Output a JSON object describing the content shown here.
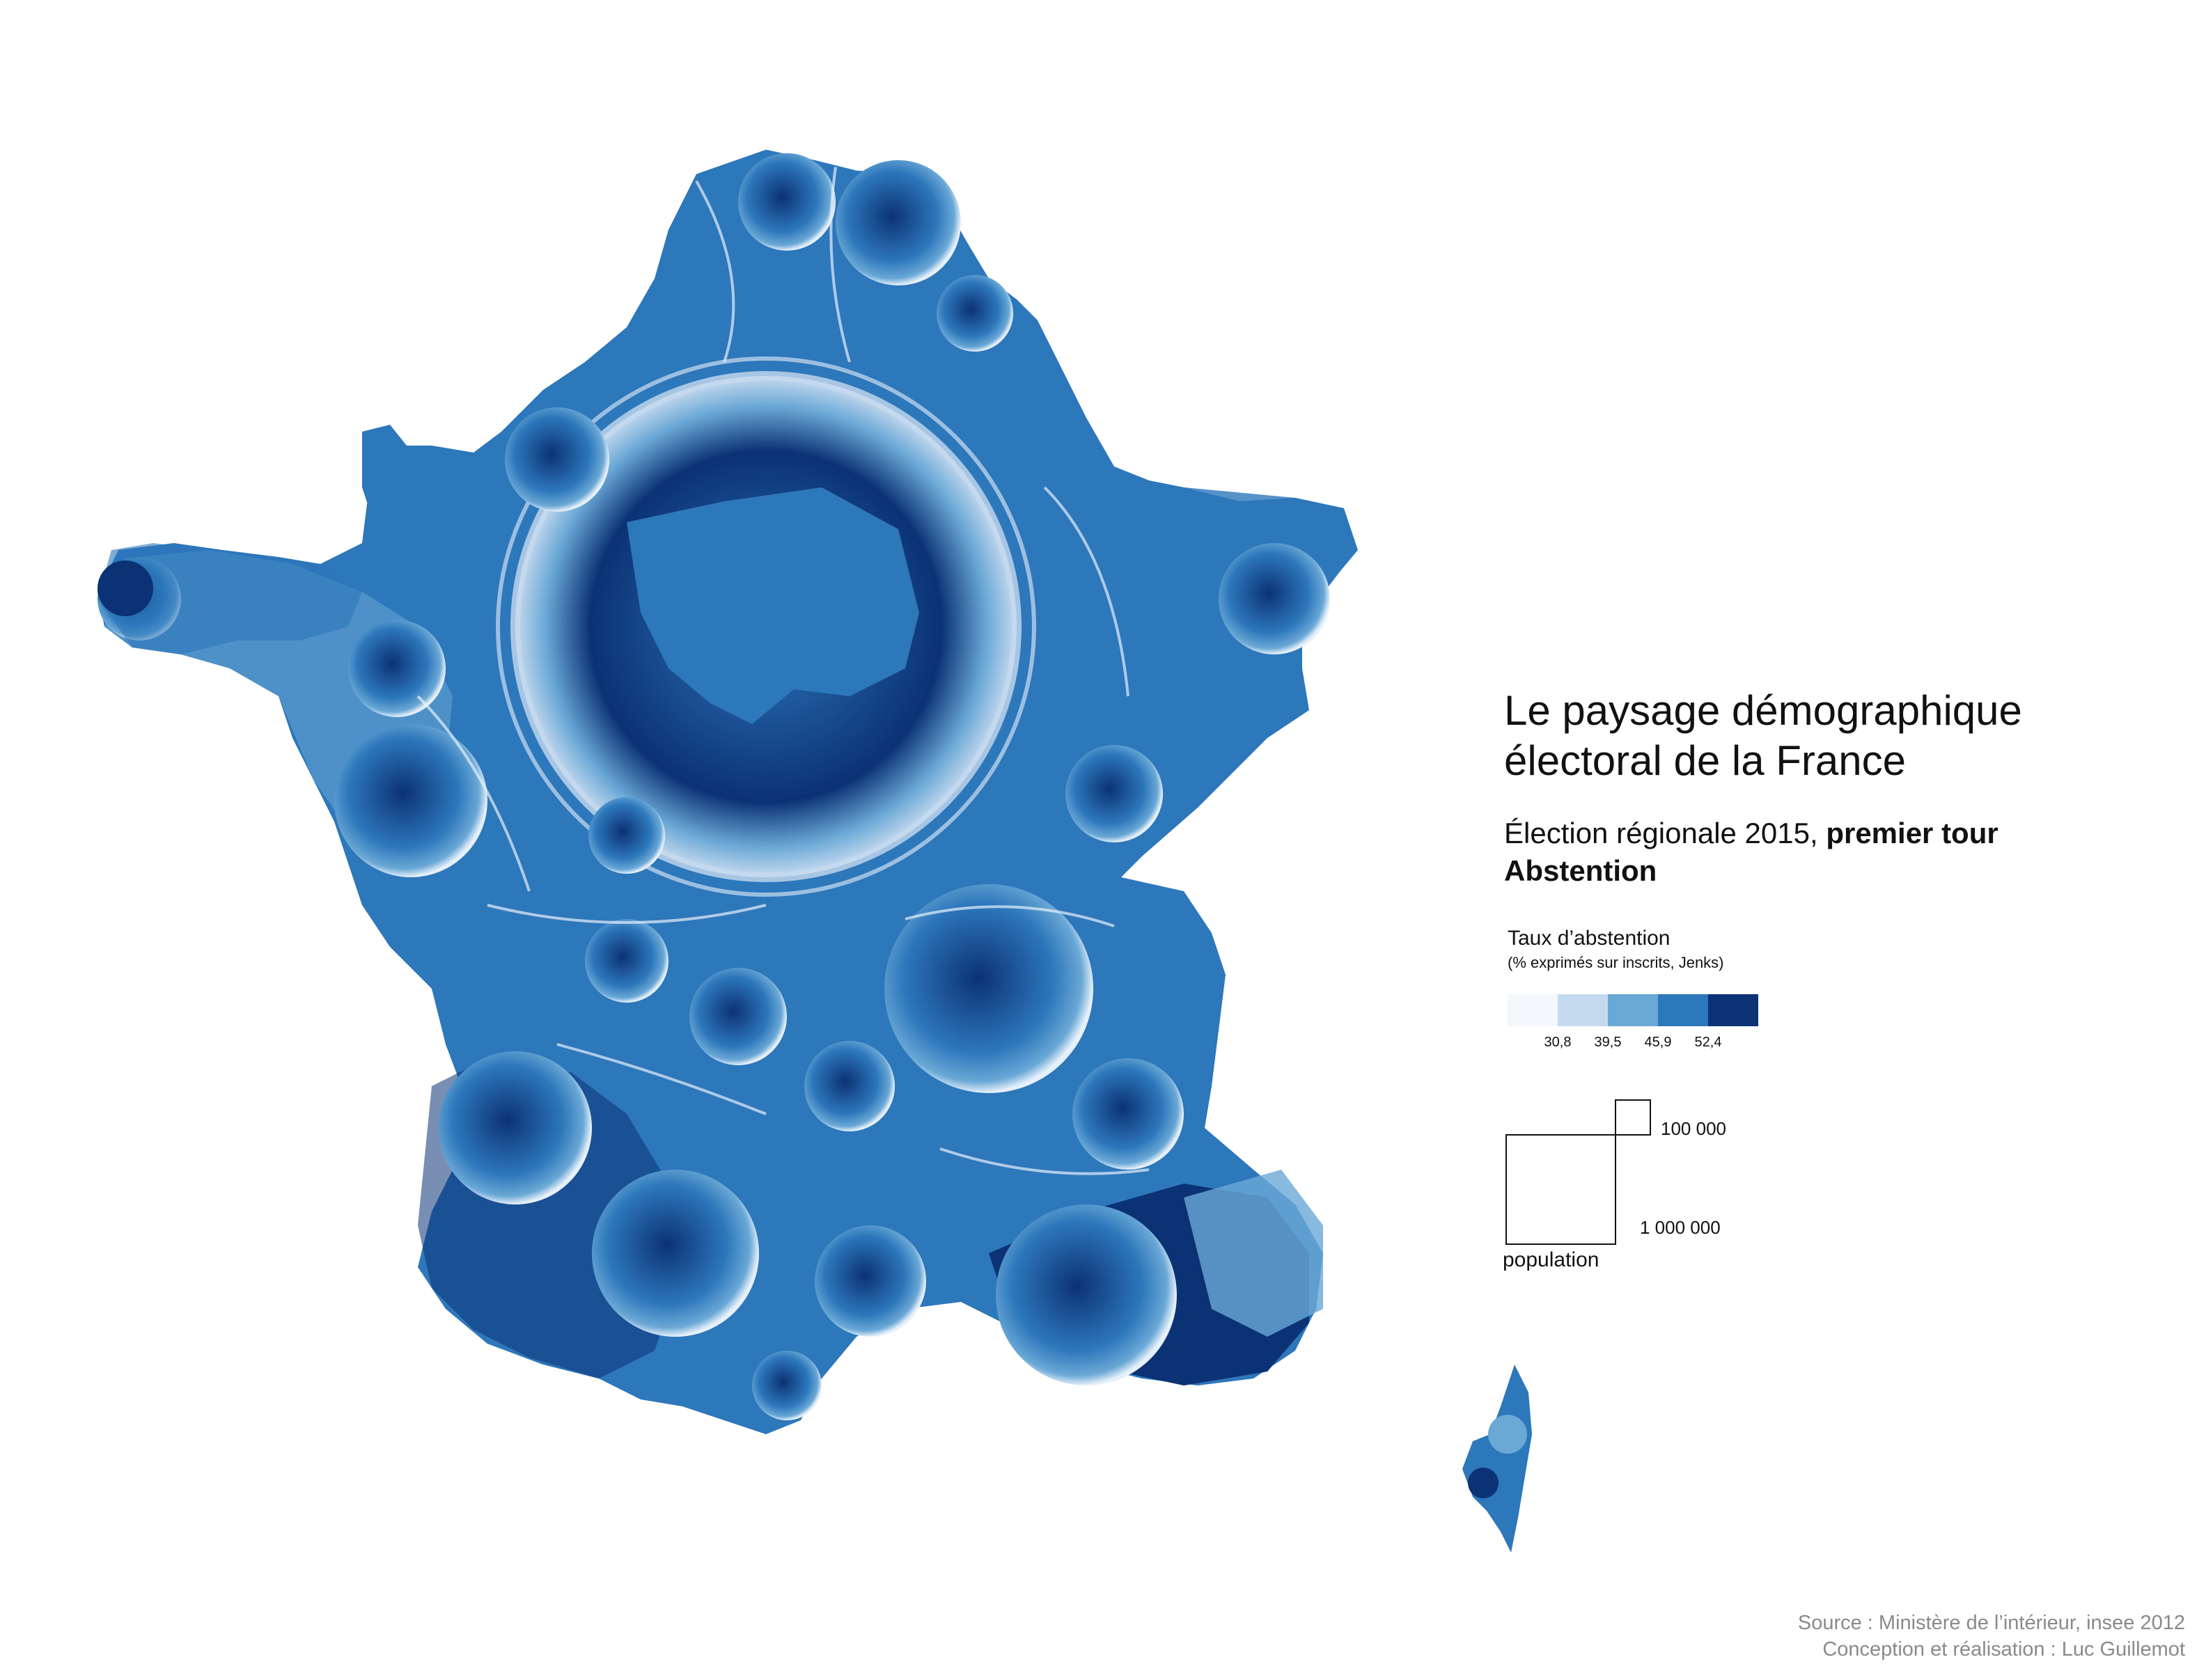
{
  "map": {
    "title_line1": "Le paysage démographique",
    "title_line2": "électoral de la France",
    "subtitle_normal": "Élection régionale 2015, ",
    "subtitle_bold": "premier tour",
    "subtitle_line2": "Abstention",
    "colors": {
      "class1": "#f4f8fd",
      "class2": "#c6daef",
      "class3": "#6aa8d6",
      "class4": "#2d77bb",
      "class5": "#0b3274",
      "highlight": "#e6f0fa"
    }
  },
  "legend": {
    "title": "Taux d’abstention",
    "subtitle": "(% exprimés sur inscrits, Jenks)",
    "ticks": [
      "30,8",
      "39,5",
      "45,9",
      "52,4"
    ],
    "swatches": [
      "#f4f8fd",
      "#c6daef",
      "#6aa8d6",
      "#2d77bb",
      "#0b3274"
    ]
  },
  "population_legend": {
    "small_label": "100 000",
    "large_label": "1 000 000",
    "caption": "population"
  },
  "credits": {
    "source": "Source : Ministère de l’intérieur, insee 2012",
    "author": "Conception et réalisation : Luc Guillemot"
  }
}
